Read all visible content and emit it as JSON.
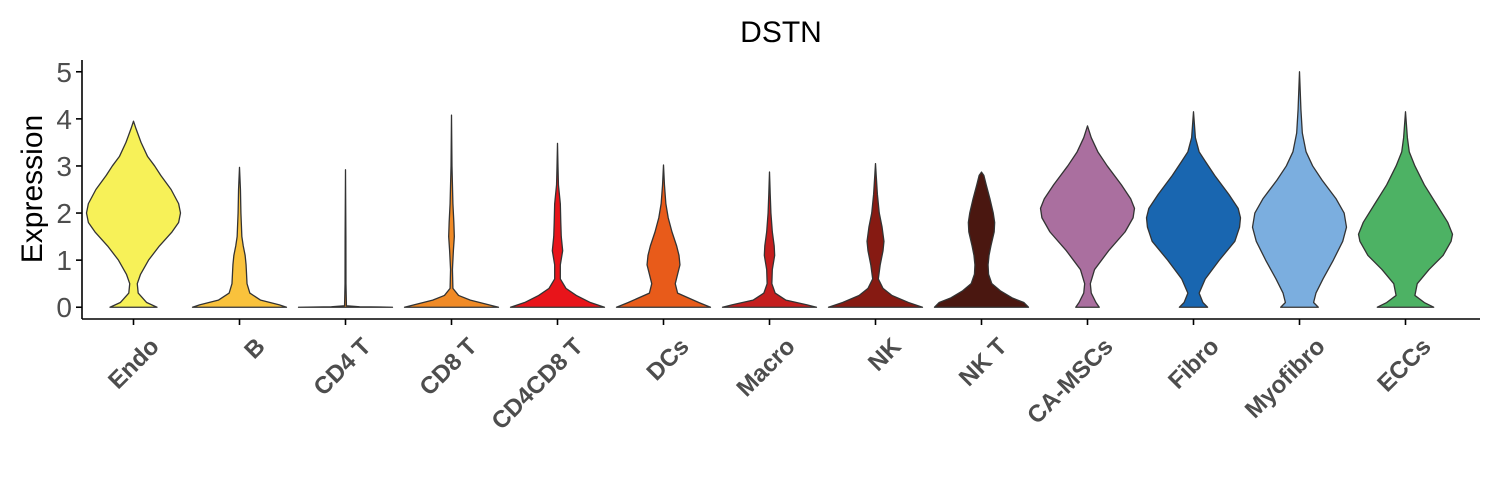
{
  "chart_data": {
    "type": "violin",
    "title": "DSTN",
    "xlabel": "",
    "ylabel": "Expression",
    "ylim": [
      -0.25,
      5.25
    ],
    "yticks": [
      0,
      1,
      2,
      3,
      4,
      5
    ],
    "grid": false,
    "legend": "none",
    "categories": [
      "Endo",
      "B",
      "CD4 T",
      "CD8 T",
      "CD4CD8 T",
      "DCs",
      "Macro",
      "NK",
      "NK T",
      "CA-MSCs",
      "Fibro",
      "Myofibro",
      "ECCs"
    ],
    "violins": [
      {
        "category": "Endo",
        "color": "#F7F158",
        "min": 0,
        "max": 3.95,
        "density": [
          [
            0,
            0.5
          ],
          [
            0.1,
            0.28
          ],
          [
            0.3,
            0.1
          ],
          [
            0.5,
            0.08
          ],
          [
            0.7,
            0.15
          ],
          [
            1.0,
            0.32
          ],
          [
            1.3,
            0.55
          ],
          [
            1.6,
            0.82
          ],
          [
            1.8,
            0.96
          ],
          [
            2.0,
            1.0
          ],
          [
            2.2,
            0.96
          ],
          [
            2.5,
            0.8
          ],
          [
            2.8,
            0.58
          ],
          [
            3.0,
            0.45
          ],
          [
            3.2,
            0.3
          ],
          [
            3.5,
            0.16
          ],
          [
            3.8,
            0.05
          ],
          [
            3.95,
            0.0
          ]
        ]
      },
      {
        "category": "B",
        "color": "#F9C23C",
        "min": 0,
        "max": 2.97,
        "density": [
          [
            0,
            1.0
          ],
          [
            0.05,
            0.85
          ],
          [
            0.15,
            0.45
          ],
          [
            0.3,
            0.22
          ],
          [
            0.5,
            0.16
          ],
          [
            0.7,
            0.15
          ],
          [
            0.9,
            0.14
          ],
          [
            1.1,
            0.12
          ],
          [
            1.3,
            0.08
          ],
          [
            1.5,
            0.05
          ],
          [
            2.0,
            0.03
          ],
          [
            2.5,
            0.02
          ],
          [
            2.97,
            0.0
          ]
        ]
      },
      {
        "category": "CD4 T",
        "color": "#F08A26",
        "min": 0,
        "max": 2.92,
        "density": [
          [
            0,
            1.0
          ],
          [
            0.01,
            0.3
          ],
          [
            0.03,
            0.02
          ],
          [
            0.5,
            0.01
          ],
          [
            1.5,
            0.008
          ],
          [
            2.92,
            0.0
          ]
        ]
      },
      {
        "category": "CD8 T",
        "color": "#F08A26",
        "min": 0,
        "max": 4.08,
        "density": [
          [
            0,
            1.0
          ],
          [
            0.05,
            0.8
          ],
          [
            0.15,
            0.4
          ],
          [
            0.25,
            0.15
          ],
          [
            0.4,
            0.03
          ],
          [
            0.8,
            0.02
          ],
          [
            1.2,
            0.04
          ],
          [
            1.5,
            0.06
          ],
          [
            1.8,
            0.05
          ],
          [
            2.2,
            0.03
          ],
          [
            3.0,
            0.01
          ],
          [
            4.08,
            0.0
          ]
        ]
      },
      {
        "category": "CD4CD8 T",
        "color": "#E8141A",
        "min": 0,
        "max": 3.48,
        "density": [
          [
            0,
            1.0
          ],
          [
            0.1,
            0.7
          ],
          [
            0.25,
            0.4
          ],
          [
            0.4,
            0.18
          ],
          [
            0.6,
            0.06
          ],
          [
            0.9,
            0.06
          ],
          [
            1.2,
            0.11
          ],
          [
            1.5,
            0.08
          ],
          [
            1.8,
            0.07
          ],
          [
            2.2,
            0.06
          ],
          [
            2.6,
            0.02
          ],
          [
            3.0,
            0.01
          ],
          [
            3.48,
            0.0
          ]
        ]
      },
      {
        "category": "DCs",
        "color": "#E85B1A",
        "min": 0,
        "max": 3.02,
        "density": [
          [
            0,
            1.0
          ],
          [
            0.1,
            0.75
          ],
          [
            0.3,
            0.3
          ],
          [
            0.5,
            0.25
          ],
          [
            0.7,
            0.3
          ],
          [
            0.9,
            0.35
          ],
          [
            1.1,
            0.33
          ],
          [
            1.3,
            0.28
          ],
          [
            1.6,
            0.18
          ],
          [
            1.9,
            0.1
          ],
          [
            2.2,
            0.05
          ],
          [
            2.6,
            0.02
          ],
          [
            3.02,
            0.0
          ]
        ]
      },
      {
        "category": "Macro",
        "color": "#C41E1E",
        "min": 0,
        "max": 2.87,
        "density": [
          [
            0,
            1.0
          ],
          [
            0.05,
            0.8
          ],
          [
            0.15,
            0.35
          ],
          [
            0.3,
            0.12
          ],
          [
            0.5,
            0.05
          ],
          [
            0.8,
            0.06
          ],
          [
            1.1,
            0.11
          ],
          [
            1.3,
            0.1
          ],
          [
            1.6,
            0.06
          ],
          [
            2.0,
            0.03
          ],
          [
            2.4,
            0.015
          ],
          [
            2.87,
            0.0
          ]
        ]
      },
      {
        "category": "NK",
        "color": "#861A12",
        "min": 0,
        "max": 3.05,
        "density": [
          [
            0,
            1.0
          ],
          [
            0.1,
            0.7
          ],
          [
            0.25,
            0.35
          ],
          [
            0.4,
            0.16
          ],
          [
            0.6,
            0.06
          ],
          [
            0.9,
            0.1
          ],
          [
            1.2,
            0.16
          ],
          [
            1.4,
            0.18
          ],
          [
            1.7,
            0.14
          ],
          [
            2.0,
            0.08
          ],
          [
            2.4,
            0.04
          ],
          [
            2.8,
            0.015
          ],
          [
            3.05,
            0.0
          ]
        ]
      },
      {
        "category": "NK T",
        "color": "#4A1710",
        "min": 0,
        "max": 2.87,
        "density": [
          [
            0,
            1.0
          ],
          [
            0.1,
            0.9
          ],
          [
            0.2,
            0.65
          ],
          [
            0.35,
            0.4
          ],
          [
            0.5,
            0.22
          ],
          [
            0.7,
            0.15
          ],
          [
            0.9,
            0.14
          ],
          [
            1.1,
            0.16
          ],
          [
            1.3,
            0.2
          ],
          [
            1.6,
            0.27
          ],
          [
            1.8,
            0.28
          ],
          [
            2.0,
            0.25
          ],
          [
            2.3,
            0.18
          ],
          [
            2.6,
            0.1
          ],
          [
            2.8,
            0.05
          ],
          [
            2.87,
            0.0
          ]
        ]
      },
      {
        "category": "CA-MSCs",
        "color": "#AA6F9F",
        "min": 0,
        "max": 3.85,
        "density": [
          [
            0,
            0.25
          ],
          [
            0.1,
            0.18
          ],
          [
            0.3,
            0.08
          ],
          [
            0.5,
            0.06
          ],
          [
            0.8,
            0.15
          ],
          [
            1.2,
            0.45
          ],
          [
            1.6,
            0.8
          ],
          [
            1.9,
            0.97
          ],
          [
            2.1,
            1.0
          ],
          [
            2.3,
            0.92
          ],
          [
            2.6,
            0.72
          ],
          [
            3.0,
            0.42
          ],
          [
            3.3,
            0.22
          ],
          [
            3.6,
            0.08
          ],
          [
            3.85,
            0.0
          ]
        ]
      },
      {
        "category": "Fibro",
        "color": "#1966B0",
        "min": 0,
        "max": 4.15,
        "density": [
          [
            0,
            0.3
          ],
          [
            0.1,
            0.2
          ],
          [
            0.3,
            0.12
          ],
          [
            0.6,
            0.25
          ],
          [
            1.0,
            0.55
          ],
          [
            1.4,
            0.88
          ],
          [
            1.7,
            0.98
          ],
          [
            1.9,
            1.0
          ],
          [
            2.1,
            0.95
          ],
          [
            2.4,
            0.75
          ],
          [
            2.8,
            0.45
          ],
          [
            3.1,
            0.25
          ],
          [
            3.3,
            0.12
          ],
          [
            3.6,
            0.04
          ],
          [
            4.15,
            0.0
          ]
        ]
      },
      {
        "category": "Myofibro",
        "color": "#7BAEDF",
        "min": 0,
        "max": 5.0,
        "density": [
          [
            0,
            0.4
          ],
          [
            0.1,
            0.3
          ],
          [
            0.3,
            0.35
          ],
          [
            0.6,
            0.5
          ],
          [
            1.0,
            0.72
          ],
          [
            1.4,
            0.92
          ],
          [
            1.7,
            1.0
          ],
          [
            2.0,
            0.95
          ],
          [
            2.3,
            0.78
          ],
          [
            2.7,
            0.48
          ],
          [
            3.0,
            0.28
          ],
          [
            3.3,
            0.14
          ],
          [
            3.7,
            0.06
          ],
          [
            4.2,
            0.03
          ],
          [
            5.0,
            0.0
          ]
        ]
      },
      {
        "category": "ECCs",
        "color": "#4DB264",
        "min": 0,
        "max": 4.15,
        "density": [
          [
            0,
            0.6
          ],
          [
            0.1,
            0.4
          ],
          [
            0.25,
            0.2
          ],
          [
            0.5,
            0.25
          ],
          [
            0.8,
            0.5
          ],
          [
            1.1,
            0.8
          ],
          [
            1.4,
            0.97
          ],
          [
            1.55,
            1.0
          ],
          [
            1.8,
            0.9
          ],
          [
            2.2,
            0.65
          ],
          [
            2.6,
            0.4
          ],
          [
            3.0,
            0.2
          ],
          [
            3.3,
            0.08
          ],
          [
            3.6,
            0.04
          ],
          [
            4.15,
            0.0
          ]
        ]
      }
    ]
  }
}
